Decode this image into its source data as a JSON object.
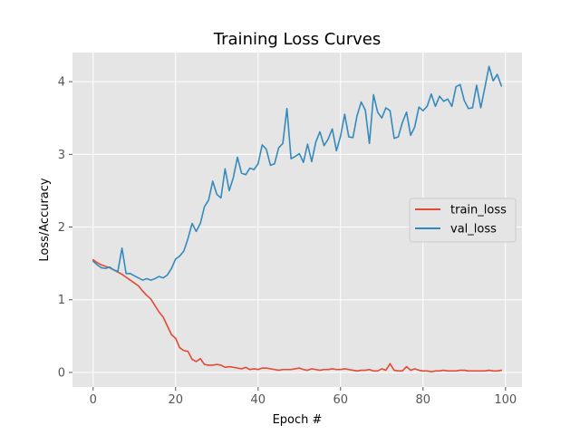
{
  "chart_data": {
    "type": "line",
    "title": "Training Loss Curves",
    "xlabel": "Epoch #",
    "ylabel": "Loss/Accuracy",
    "xlim": [
      -5,
      104
    ],
    "ylim": [
      -0.2,
      4.4
    ],
    "xticks": [
      0,
      20,
      40,
      60,
      80,
      100
    ],
    "yticks": [
      0,
      1,
      2,
      3,
      4
    ],
    "grid": true,
    "legend_position": "right",
    "x": [
      0,
      1,
      2,
      3,
      4,
      5,
      6,
      7,
      8,
      9,
      10,
      11,
      12,
      13,
      14,
      15,
      16,
      17,
      18,
      19,
      20,
      21,
      22,
      23,
      24,
      25,
      26,
      27,
      28,
      29,
      30,
      31,
      32,
      33,
      34,
      35,
      36,
      37,
      38,
      39,
      40,
      41,
      42,
      43,
      44,
      45,
      46,
      47,
      48,
      49,
      50,
      51,
      52,
      53,
      54,
      55,
      56,
      57,
      58,
      59,
      60,
      61,
      62,
      63,
      64,
      65,
      66,
      67,
      68,
      69,
      70,
      71,
      72,
      73,
      74,
      75,
      76,
      77,
      78,
      79,
      80,
      81,
      82,
      83,
      84,
      85,
      86,
      87,
      88,
      89,
      90,
      91,
      92,
      93,
      94,
      95,
      96,
      97,
      98,
      99
    ],
    "series": [
      {
        "name": "train_loss",
        "color": "#E24A33",
        "values": [
          1.55,
          1.51,
          1.48,
          1.46,
          1.44,
          1.41,
          1.38,
          1.35,
          1.31,
          1.27,
          1.23,
          1.19,
          1.12,
          1.06,
          1.01,
          0.92,
          0.83,
          0.76,
          0.64,
          0.52,
          0.47,
          0.34,
          0.3,
          0.29,
          0.18,
          0.15,
          0.19,
          0.11,
          0.1,
          0.1,
          0.11,
          0.1,
          0.07,
          0.08,
          0.07,
          0.06,
          0.05,
          0.07,
          0.04,
          0.05,
          0.04,
          0.06,
          0.06,
          0.05,
          0.04,
          0.03,
          0.04,
          0.04,
          0.04,
          0.05,
          0.06,
          0.04,
          0.03,
          0.05,
          0.04,
          0.03,
          0.04,
          0.04,
          0.05,
          0.04,
          0.04,
          0.05,
          0.04,
          0.03,
          0.02,
          0.03,
          0.03,
          0.04,
          0.02,
          0.02,
          0.05,
          0.03,
          0.12,
          0.03,
          0.02,
          0.02,
          0.08,
          0.03,
          0.05,
          0.03,
          0.02,
          0.02,
          0.01,
          0.02,
          0.02,
          0.03,
          0.02,
          0.02,
          0.02,
          0.03,
          0.03,
          0.02,
          0.02,
          0.02,
          0.02,
          0.02,
          0.03,
          0.02,
          0.02,
          0.03
        ]
      },
      {
        "name": "val_loss",
        "color": "#348ABD",
        "values": [
          1.53,
          1.48,
          1.44,
          1.43,
          1.45,
          1.41,
          1.39,
          1.71,
          1.36,
          1.36,
          1.33,
          1.3,
          1.27,
          1.29,
          1.27,
          1.29,
          1.32,
          1.3,
          1.34,
          1.43,
          1.56,
          1.6,
          1.67,
          1.84,
          2.05,
          1.94,
          2.05,
          2.28,
          2.37,
          2.63,
          2.45,
          2.4,
          2.8,
          2.5,
          2.68,
          2.96,
          2.74,
          2.72,
          2.81,
          2.79,
          2.87,
          3.13,
          3.07,
          2.85,
          2.87,
          3.09,
          3.15,
          3.63,
          2.94,
          2.97,
          3.01,
          2.89,
          3.14,
          2.9,
          3.17,
          3.31,
          3.12,
          3.21,
          3.35,
          3.05,
          3.25,
          3.55,
          3.24,
          3.23,
          3.53,
          3.72,
          3.61,
          3.15,
          3.82,
          3.58,
          3.5,
          3.64,
          3.6,
          3.22,
          3.24,
          3.44,
          3.58,
          3.26,
          3.38,
          3.65,
          3.6,
          3.66,
          3.83,
          3.66,
          3.8,
          3.73,
          3.76,
          3.66,
          3.93,
          3.96,
          3.74,
          3.63,
          3.64,
          3.95,
          3.64,
          3.92,
          4.21,
          4.01,
          4.1,
          3.94
        ]
      }
    ]
  }
}
